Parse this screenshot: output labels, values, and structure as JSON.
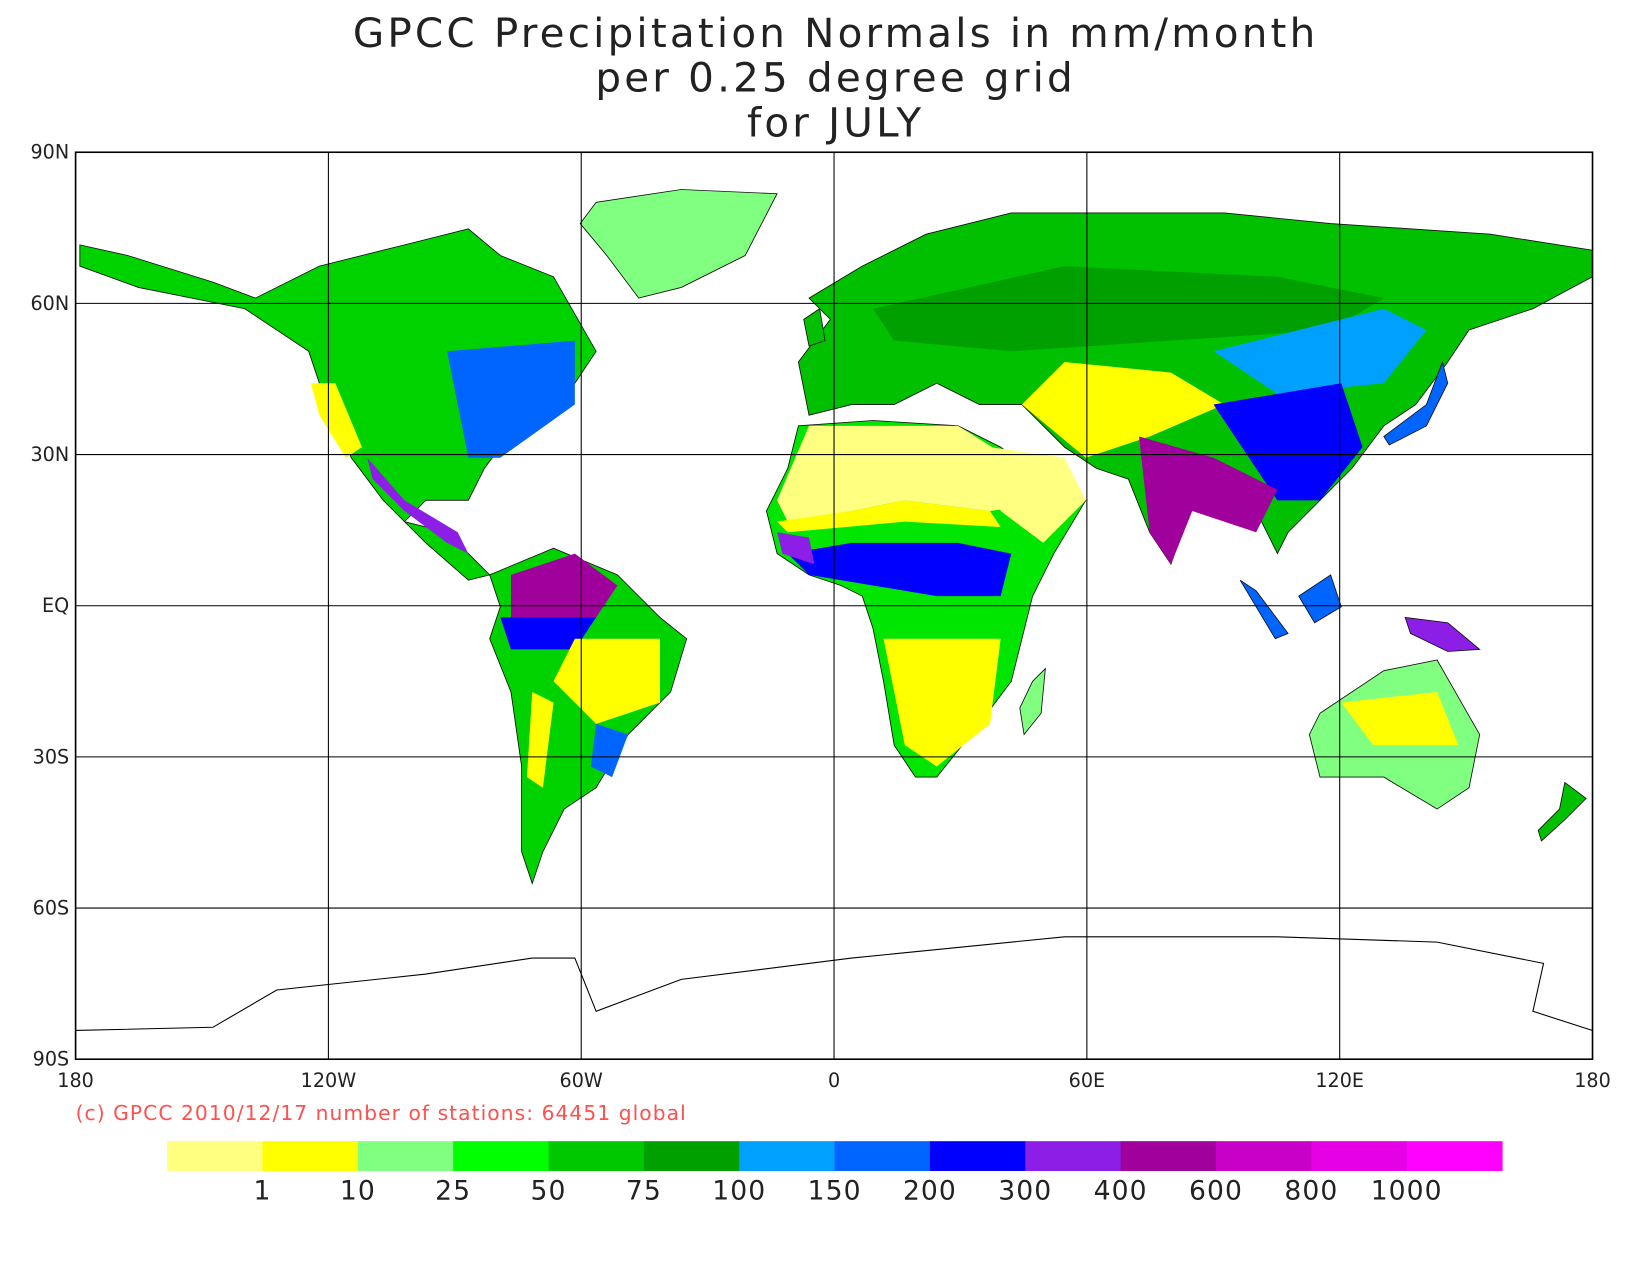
{
  "chart_data": {
    "type": "map",
    "title_lines": [
      "GPCC Precipitation Normals in mm/month",
      "per 0.25 degree grid",
      "for JULY"
    ],
    "xlim": [
      -180,
      180
    ],
    "ylim": [
      -90,
      90
    ],
    "xticks": [
      {
        "value": -180,
        "label": "180"
      },
      {
        "value": -120,
        "label": "120W"
      },
      {
        "value": -60,
        "label": "60W"
      },
      0,
      {
        "value": 60,
        "label": "60E"
      },
      {
        "value": 120,
        "label": "120E"
      },
      {
        "value": 180,
        "label": "180"
      }
    ],
    "yticks": [
      {
        "value": 90,
        "label": "90N"
      },
      {
        "value": 60,
        "label": "60N"
      },
      {
        "value": 30,
        "label": "30N"
      },
      {
        "value": 0,
        "label": "EQ"
      },
      {
        "value": -30,
        "label": "30S"
      },
      {
        "value": -60,
        "label": "60S"
      },
      {
        "value": -90,
        "label": "90S"
      }
    ],
    "grid": true,
    "credit": "(c) GPCC 2010/12/17 number of stations: 64451 global",
    "legend": {
      "levels": [
        1,
        10,
        25,
        50,
        75,
        100,
        150,
        200,
        300,
        400,
        600,
        800,
        1000
      ],
      "colors": [
        "#ffff80",
        "#ffff00",
        "#80ff80",
        "#00ff00",
        "#00c800",
        "#00a000",
        "#00a0ff",
        "#0064ff",
        "#0000ff",
        "#8c1ee6",
        "#a0009b",
        "#c800c8",
        "#e600e6",
        "#ff00ff"
      ]
    }
  }
}
